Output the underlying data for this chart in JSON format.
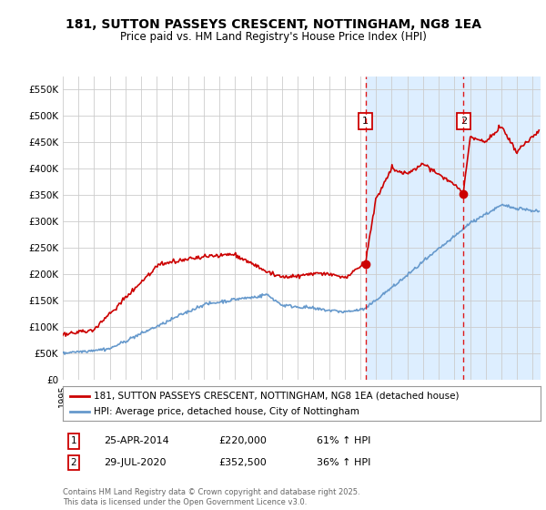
{
  "title": "181, SUTTON PASSEYS CRESCENT, NOTTINGHAM, NG8 1EA",
  "subtitle": "Price paid vs. HM Land Registry's House Price Index (HPI)",
  "legend_line1": "181, SUTTON PASSEYS CRESCENT, NOTTINGHAM, NG8 1EA (detached house)",
  "legend_line2": "HPI: Average price, detached house, City of Nottingham",
  "annotation1_label": "1",
  "annotation1_date": "25-APR-2014",
  "annotation1_price": "£220,000",
  "annotation1_hpi": "61% ↑ HPI",
  "annotation1_year": 2014.32,
  "annotation1_value": 220000,
  "annotation2_label": "2",
  "annotation2_date": "29-JUL-2020",
  "annotation2_price": "£352,500",
  "annotation2_hpi": "36% ↑ HPI",
  "annotation2_year": 2020.58,
  "annotation2_value": 352500,
  "footer": "Contains HM Land Registry data © Crown copyright and database right 2025.\nThis data is licensed under the Open Government Licence v3.0.",
  "hpi_color": "#6699cc",
  "price_color": "#cc0000",
  "plot_bg": "#ffffff",
  "shade_color": "#ddeeff",
  "ylim": [
    0,
    575000
  ],
  "yticks": [
    0,
    50000,
    100000,
    150000,
    200000,
    250000,
    300000,
    350000,
    400000,
    450000,
    500000,
    550000
  ],
  "ytick_labels": [
    "£0",
    "£50K",
    "£100K",
    "£150K",
    "£200K",
    "£250K",
    "£300K",
    "£350K",
    "£400K",
    "£450K",
    "£500K",
    "£550K"
  ],
  "xlim_start": 1995,
  "xlim_end": 2025.5
}
